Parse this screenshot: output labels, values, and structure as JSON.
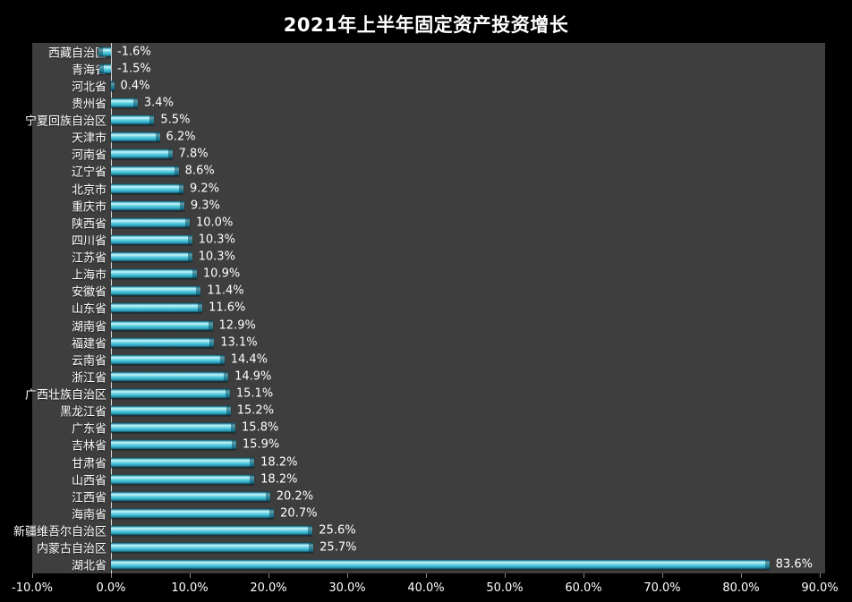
{
  "title": "2021年上半年固定资产投资增长",
  "chart_data": {
    "type": "bar",
    "orientation": "horizontal",
    "title": "2021年上半年固定资产投资增长",
    "xlabel": "",
    "ylabel": "",
    "xlim": [
      -10,
      90
    ],
    "grid": false,
    "legend": "none",
    "categories": [
      "西藏自治区",
      "青海省",
      "河北省",
      "贵州省",
      "宁夏回族自治区",
      "天津市",
      "河南省",
      "辽宁省",
      "北京市",
      "重庆市",
      "陕西省",
      "四川省",
      "江苏省",
      "上海市",
      "安徽省",
      "山东省",
      "湖南省",
      "福建省",
      "云南省",
      "浙江省",
      "广西壮族自治区",
      "黑龙江省",
      "广东省",
      "吉林省",
      "甘肃省",
      "山西省",
      "江西省",
      "海南省",
      "新疆维吾尔自治区",
      "内蒙古自治区",
      "湖北省"
    ],
    "values": [
      -1.6,
      -1.5,
      0.4,
      3.4,
      5.5,
      6.2,
      7.8,
      8.6,
      9.2,
      9.3,
      10.0,
      10.3,
      10.3,
      10.9,
      11.4,
      11.6,
      12.9,
      13.1,
      14.4,
      14.9,
      15.1,
      15.2,
      15.8,
      15.9,
      18.2,
      18.2,
      20.2,
      20.7,
      25.6,
      25.7,
      83.6
    ],
    "value_labels": [
      "-1.6%",
      "-1.5%",
      "0.4%",
      "3.4%",
      "5.5%",
      "6.2%",
      "7.8%",
      "8.6%",
      "9.2%",
      "9.3%",
      "10.0%",
      "10.3%",
      "10.3%",
      "10.9%",
      "11.4%",
      "11.6%",
      "12.9%",
      "13.1%",
      "14.4%",
      "14.9%",
      "15.1%",
      "15.2%",
      "15.8%",
      "15.9%",
      "18.2%",
      "18.2%",
      "20.2%",
      "20.7%",
      "25.6%",
      "25.7%",
      "83.6%"
    ],
    "x_tick_values": [
      -10,
      0,
      10,
      20,
      30,
      40,
      50,
      60,
      70,
      80,
      90
    ],
    "x_tick_labels": [
      "-10.0%",
      "0.0%",
      "10.0%",
      "20.0%",
      "30.0%",
      "40.0%",
      "50.0%",
      "60.0%",
      "70.0%",
      "80.0%",
      "90.0%"
    ],
    "colors": {
      "page_bg": "#000000",
      "plot_bg": "#3e3e3e",
      "bar_mid": "#4fc8dd",
      "bar_highlight": "#c9f2f7",
      "bar_dark": "#155a70",
      "title_text": "#ffffff",
      "label_text": "#ffffff",
      "axis_line": "#d9d9d9",
      "tick": "#888888"
    }
  }
}
